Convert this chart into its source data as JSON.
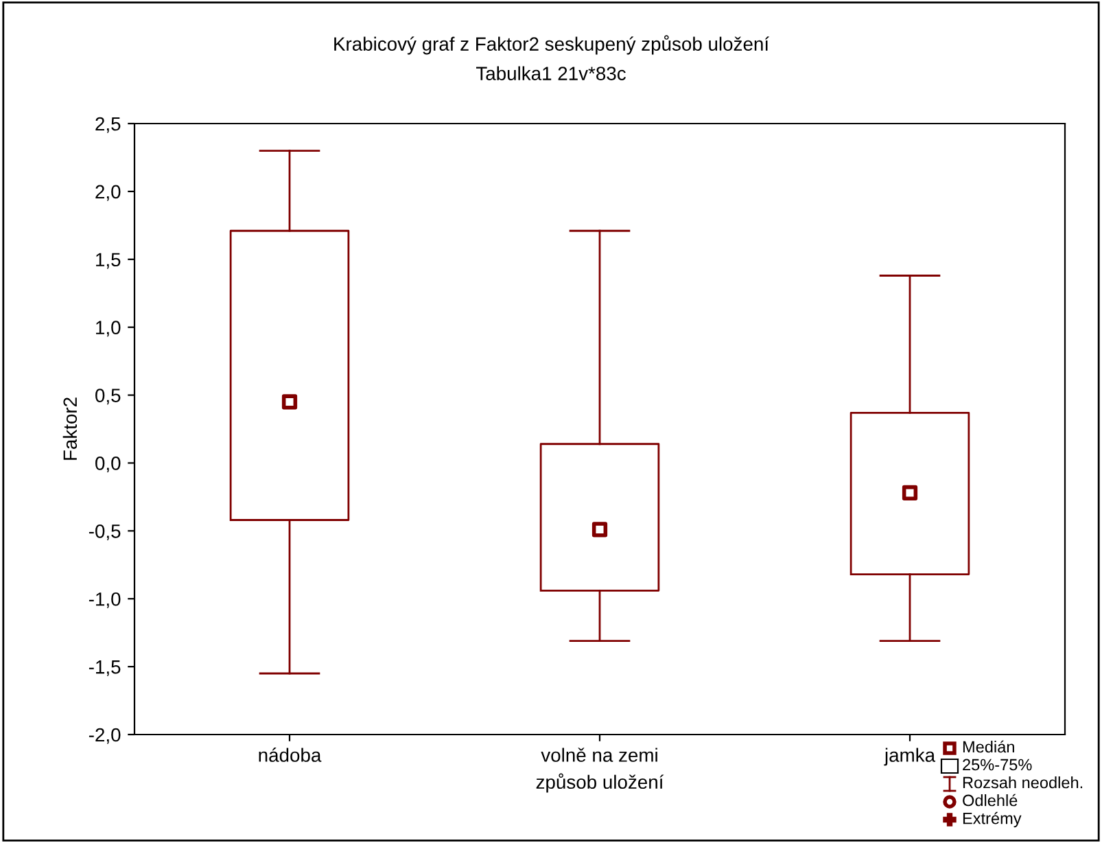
{
  "chart_data": {
    "type": "box",
    "title": "Krabicový graf z Faktor2 seskupený způsob uložení",
    "subtitle": "Tabulka1 21v*83c",
    "xlabel": "způsob uložení",
    "ylabel": "Faktor2",
    "categories": [
      "nádoba",
      "volně na zemi",
      "jamka"
    ],
    "boxes": [
      {
        "low": -1.55,
        "q1": -0.42,
        "median": 0.45,
        "q3": 1.71,
        "high": 2.3
      },
      {
        "low": -1.31,
        "q1": -0.94,
        "median": -0.49,
        "q3": 0.14,
        "high": 1.71
      },
      {
        "low": -1.31,
        "q1": -0.82,
        "median": -0.22,
        "q3": 0.37,
        "high": 1.38
      }
    ],
    "color": "#800000",
    "ylim": [
      -2.0,
      2.5
    ],
    "yticks": [
      {
        "value": -2.0,
        "label": "-2,0"
      },
      {
        "value": -1.5,
        "label": "-1,5"
      },
      {
        "value": -1.0,
        "label": "-1,0"
      },
      {
        "value": -0.5,
        "label": "-0,5"
      },
      {
        "value": 0.0,
        "label": "0,0"
      },
      {
        "value": 0.5,
        "label": "0,5"
      },
      {
        "value": 1.0,
        "label": "1,0"
      },
      {
        "value": 1.5,
        "label": "1,5"
      },
      {
        "value": 2.0,
        "label": "2,0"
      },
      {
        "value": 2.5,
        "label": "2,5"
      }
    ],
    "grid": false,
    "marker": "square",
    "annotations": [
      "Medián",
      "25%-75%",
      "Rozsah neodleh.",
      "Odlehlé",
      "Extrémy"
    ]
  }
}
